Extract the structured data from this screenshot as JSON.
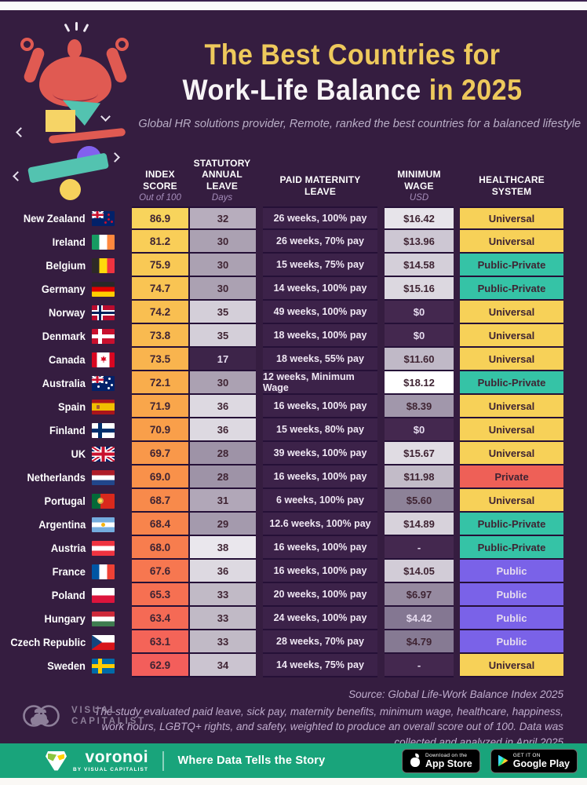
{
  "page": {
    "title_part1": "The Best Countries for",
    "title_part2": "Work-Life Balance",
    "title_part3": "in 2025",
    "subtitle": "Global HR solutions provider, Remote, ranked the best countries for a balanced lifestyle"
  },
  "palette": {
    "page_bg": "#351d40",
    "title_yellow": "#eec95c",
    "green_bar": "#19a47b",
    "healthcare": {
      "Universal": "#f7d158",
      "Public-Private": "#35c3a6",
      "Private": "#ee6057",
      "Public": "#7a62e8"
    }
  },
  "table": {
    "headers": [
      {
        "lines": [
          "INDEX",
          "SCORE"
        ],
        "sub": "Out of 100"
      },
      {
        "lines": [
          "STATUTORY",
          "ANNUAL LEAVE"
        ],
        "sub": "Days"
      },
      {
        "lines": [
          "PAID MATERNITY",
          "LEAVE"
        ],
        "sub": ""
      },
      {
        "lines": [
          "MINIMUM WAGE"
        ],
        "sub": "USD"
      },
      {
        "lines": [
          "HEALTHCARE",
          "SYSTEM"
        ],
        "sub": ""
      }
    ]
  },
  "chart_data": {
    "type": "table",
    "title": "The Best Countries for Work-Life Balance in 2025",
    "columns": [
      "Country",
      "Index Score (out of 100)",
      "Statutory Annual Leave (days)",
      "Paid Maternity Leave",
      "Minimum Wage (USD)",
      "Healthcare System"
    ],
    "rows": [
      {
        "country": "New Zealand",
        "flag": "nz",
        "score": "86.9",
        "score_bg": "#f8d45c",
        "leave": "32",
        "leave_bg": "#b7adbd",
        "maternity": "26 weeks, 100% pay",
        "wage": "$16.42",
        "wage_bg": "#e7e4ea",
        "healthcare": "Universal"
      },
      {
        "country": "Ireland",
        "flag": "ie",
        "score": "81.2",
        "score_bg": "#f9ce58",
        "leave": "30",
        "leave_bg": "#aba1b2",
        "maternity": "26 weeks, 70% pay",
        "wage": "$13.96",
        "wage_bg": "#cdc7d3",
        "healthcare": "Universal"
      },
      {
        "country": "Belgium",
        "flag": "be",
        "score": "75.9",
        "score_bg": "#f9c955",
        "leave": "30",
        "leave_bg": "#aba1b2",
        "maternity": "15 weeks, 75% pay",
        "wage": "$14.58",
        "wage_bg": "#d4cfd9",
        "healthcare": "Public-Private"
      },
      {
        "country": "Germany",
        "flag": "de",
        "score": "74.7",
        "score_bg": "#f9c453",
        "leave": "30",
        "leave_bg": "#aba1b2",
        "maternity": "14 weeks, 100% pay",
        "wage": "$15.16",
        "wage_bg": "#dcd8e0",
        "healthcare": "Public-Private"
      },
      {
        "country": "Norway",
        "flag": "no",
        "score": "74.2",
        "score_bg": "#f9bf51",
        "leave": "35",
        "leave_bg": "#d4cfd9",
        "maternity": "49 weeks, 100% pay",
        "wage": "$0",
        "wage_bg": "#44284f",
        "healthcare": "Universal"
      },
      {
        "country": "Denmark",
        "flag": "dk",
        "score": "73.8",
        "score_bg": "#f9ba50",
        "leave": "35",
        "leave_bg": "#d4cfd9",
        "maternity": "18 weeks, 100% pay",
        "wage": "$0",
        "wage_bg": "#44284f",
        "healthcare": "Universal"
      },
      {
        "country": "Canada",
        "flag": "ca",
        "score": "73.5",
        "score_bg": "#f9b44e",
        "leave": "17",
        "leave_bg": "#3d2449",
        "maternity": "18 weeks, 55% pay",
        "wage": "$11.60",
        "wage_bg": "#c0b9c7",
        "healthcare": "Universal"
      },
      {
        "country": "Australia",
        "flag": "au",
        "score": "72.1",
        "score_bg": "#f9ad4c",
        "leave": "30",
        "leave_bg": "#aba1b2",
        "maternity": "12 weeks, Minimum Wage",
        "wage": "$18.12",
        "wage_bg": "#ffffff",
        "healthcare": "Public-Private"
      },
      {
        "country": "Spain",
        "flag": "es",
        "score": "71.9",
        "score_bg": "#f9a64b",
        "leave": "36",
        "leave_bg": "#ddd9e1",
        "maternity": "16 weeks, 100% pay",
        "wage": "$8.39",
        "wage_bg": "#a197ab",
        "healthcare": "Universal"
      },
      {
        "country": "Finland",
        "flag": "fi",
        "score": "70.9",
        "score_bg": "#f99f4a",
        "leave": "36",
        "leave_bg": "#ddd9e1",
        "maternity": "15 weeks, 80% pay",
        "wage": "$0",
        "wage_bg": "#44284f",
        "healthcare": "Universal"
      },
      {
        "country": "UK",
        "flag": "gb",
        "score": "69.7",
        "score_bg": "#f9984a",
        "leave": "28",
        "leave_bg": "#9e93a7",
        "maternity": "39 weeks, 100% pay",
        "wage": "$15.67",
        "wage_bg": "#e0dce3",
        "healthcare": "Universal"
      },
      {
        "country": "Netherlands",
        "flag": "nl",
        "score": "69.0",
        "score_bg": "#f9914a",
        "leave": "28",
        "leave_bg": "#9e93a7",
        "maternity": "16 weeks, 100% pay",
        "wage": "$11.98",
        "wage_bg": "#c2bbc8",
        "healthcare": "Private"
      },
      {
        "country": "Portugal",
        "flag": "pt",
        "score": "68.7",
        "score_bg": "#f88a4b",
        "leave": "31",
        "leave_bg": "#b1a7b8",
        "maternity": "6 weeks, 100% pay",
        "wage": "$5.60",
        "wage_bg": "#8d8298",
        "healthcare": "Universal"
      },
      {
        "country": "Argentina",
        "flag": "ar",
        "score": "68.4",
        "score_bg": "#f8844c",
        "leave": "29",
        "leave_bg": "#a49aad",
        "maternity": "12.6 weeks, 100% pay",
        "wage": "$14.89",
        "wage_bg": "#d7d2db",
        "healthcare": "Public-Private"
      },
      {
        "country": "Austria",
        "flag": "at",
        "score": "68.0",
        "score_bg": "#f77d4e",
        "leave": "38",
        "leave_bg": "#eae7ed",
        "maternity": "16 weeks, 100% pay",
        "wage": "-",
        "wage_bg": "#44284f",
        "healthcare": "Public-Private"
      },
      {
        "country": "France",
        "flag": "fr",
        "score": "67.6",
        "score_bg": "#f77750",
        "leave": "36",
        "leave_bg": "#ddd9e1",
        "maternity": "16 weeks, 100% pay",
        "wage": "$14.05",
        "wage_bg": "#d2ccd7",
        "healthcare": "Public"
      },
      {
        "country": "Poland",
        "flag": "pl",
        "score": "65.3",
        "score_bg": "#f67052",
        "leave": "33",
        "leave_bg": "#c1bac6",
        "maternity": "20 weeks, 100% pay",
        "wage": "$6.97",
        "wage_bg": "#968aa0",
        "healthcare": "Public"
      },
      {
        "country": "Hungary",
        "flag": "hu",
        "score": "63.4",
        "score_bg": "#f56a55",
        "leave": "33",
        "leave_bg": "#c1bac6",
        "maternity": "24 weeks, 100% pay",
        "wage": "$4.42",
        "wage_bg": "#847792",
        "healthcare": "Public"
      },
      {
        "country": "Czech Republic",
        "flag": "cz",
        "score": "63.1",
        "score_bg": "#f46458",
        "leave": "33",
        "leave_bg": "#c1bac6",
        "maternity": "28 weeks, 70% pay",
        "wage": "$4.79",
        "wage_bg": "#867a93",
        "healthcare": "Public"
      },
      {
        "country": "Sweden",
        "flag": "se",
        "score": "62.9",
        "score_bg": "#f35e5b",
        "leave": "34",
        "leave_bg": "#cbc4d0",
        "maternity": "14 weeks, 75% pay",
        "wage": "-",
        "wage_bg": "#44284f",
        "healthcare": "Universal"
      }
    ]
  },
  "footer": {
    "source_line": "Source: Global Life-Work Balance Index 2025",
    "note": "The study evaluated paid leave, sick pay, maternity benefits, minimum wage, healthcare, happiness, work hours, LGBTQ+ rights, and safety, weighted to produce an overall score out of 100. Data was collected and analyzed in April 2025",
    "brand_line1": "VISUAL",
    "brand_line2": "CAPITALIST"
  },
  "bottom_bar": {
    "logo_text": "voronoi",
    "logo_sub": "BY VISUAL CAPITALIST",
    "tagline": "Where Data Tells the Story",
    "appstore_top": "Download on the",
    "appstore_main": "App Store",
    "gplay_top": "GET IT ON",
    "gplay_main": "Google Play"
  }
}
